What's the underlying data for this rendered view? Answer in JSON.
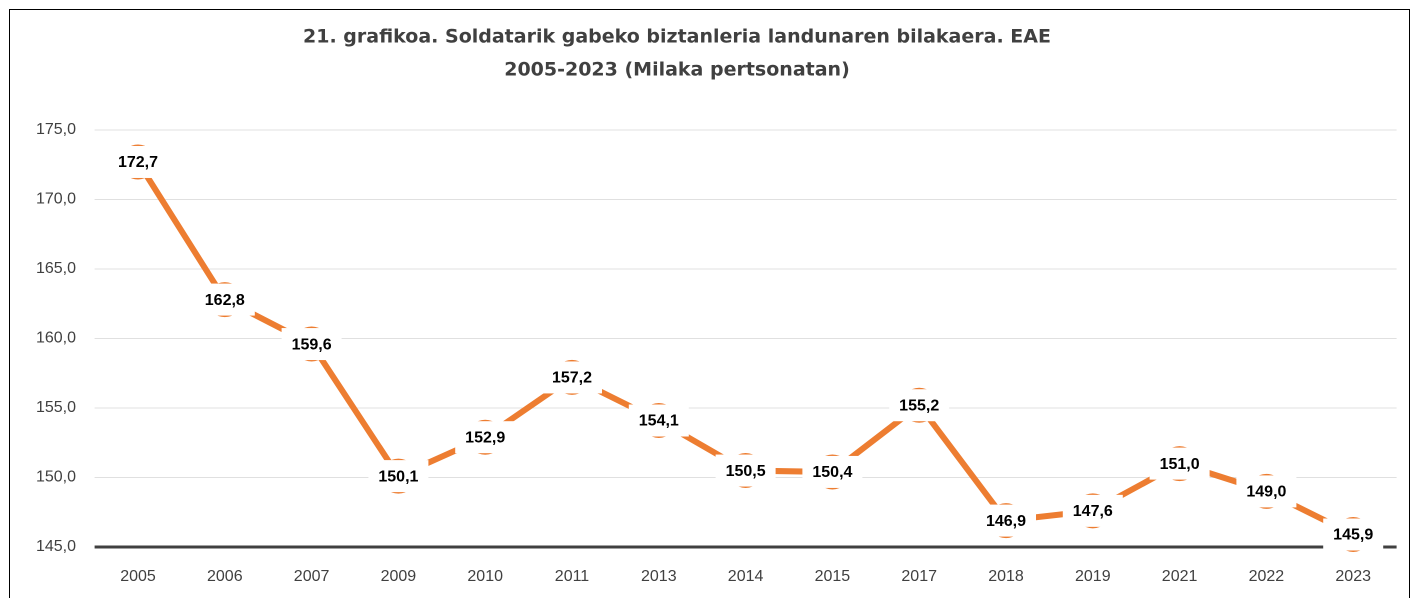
{
  "chart_data": {
    "type": "line",
    "title": "21. grafikoa. Soldatarik gabeko biztanleria landunaren bilakaera. EAE",
    "subtitle": "2005-2023 (Milaka pertsonatan)",
    "categories": [
      "2005",
      "2006",
      "2007",
      "2009",
      "2010",
      "2011",
      "2013",
      "2014",
      "2015",
      "2017",
      "2018",
      "2019",
      "2021",
      "2022",
      "2023"
    ],
    "values": [
      172.7,
      162.8,
      159.6,
      150.1,
      152.9,
      157.2,
      154.1,
      150.5,
      150.4,
      155.2,
      146.9,
      147.6,
      151.0,
      149.0,
      145.9
    ],
    "value_labels": [
      "172,7",
      "162,8",
      "159,6",
      "150,1",
      "152,9",
      "157,2",
      "154,1",
      "150,5",
      "150,4",
      "155,2",
      "146,9",
      "147,6",
      "151,0",
      "149,0",
      "145,9"
    ],
    "color": "#ed7d31",
    "ylim": [
      145,
      175
    ],
    "yticks": [
      {
        "value": 145,
        "label": "145,0"
      },
      {
        "value": 150,
        "label": "150,0"
      },
      {
        "value": 155,
        "label": "155,0"
      },
      {
        "value": 160,
        "label": "160,0"
      },
      {
        "value": 165,
        "label": "165,0"
      },
      {
        "value": 170,
        "label": "170,0"
      },
      {
        "value": 175,
        "label": "175,0"
      }
    ],
    "grid": true
  }
}
